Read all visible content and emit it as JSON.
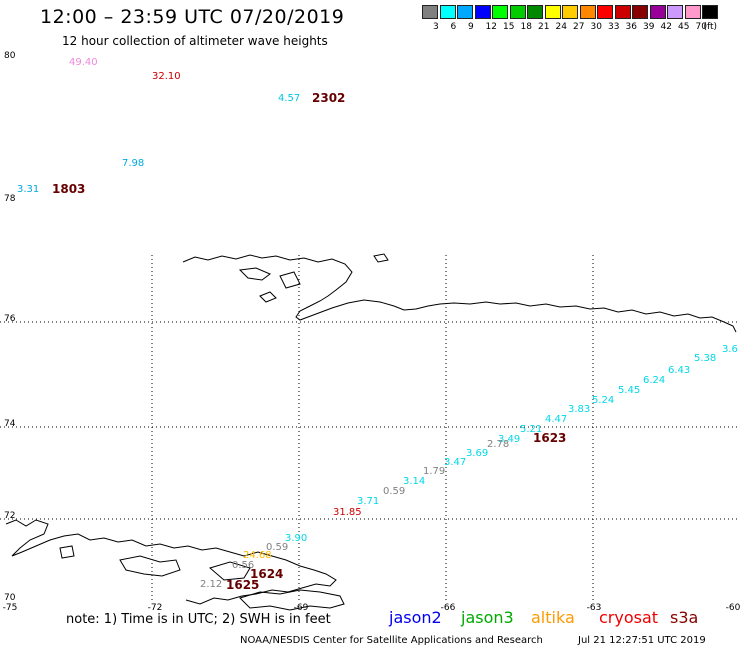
{
  "header": {
    "title": "12:00 – 23:59 UTC 07/20/2019",
    "subtitle": "12 hour collection of altimeter wave heights"
  },
  "legend": {
    "unit": "(ft)",
    "bins": [
      {
        "label": "3",
        "color": "#808080"
      },
      {
        "label": "6",
        "color": "#00ffff"
      },
      {
        "label": "9",
        "color": "#00a8ff"
      },
      {
        "label": "12",
        "color": "#0000ff"
      },
      {
        "label": "15",
        "color": "#00ff00"
      },
      {
        "label": "18",
        "color": "#00cc00"
      },
      {
        "label": "21",
        "color": "#008800"
      },
      {
        "label": "24",
        "color": "#ffff00"
      },
      {
        "label": "27",
        "color": "#ffcc00"
      },
      {
        "label": "30",
        "color": "#ff8800"
      },
      {
        "label": "33",
        "color": "#ff0000"
      },
      {
        "label": "36",
        "color": "#cc0000"
      },
      {
        "label": "39",
        "color": "#880000"
      },
      {
        "label": "42",
        "color": "#990099"
      },
      {
        "label": "45",
        "color": "#cc99ff"
      },
      {
        "label": "70",
        "color": "#ff99cc"
      },
      {
        "label": "",
        "color": "#000000"
      }
    ]
  },
  "map": {
    "lon_range": [
      -75,
      -60
    ],
    "lat_range": [
      70,
      80
    ],
    "lon_ticks": [
      "-75",
      "-72",
      "-69",
      "-66",
      "-63",
      "-60"
    ],
    "lat_ticks": [
      "80",
      "78",
      "76",
      "74",
      "72",
      "70"
    ],
    "grid_lines": "dotted"
  },
  "observations": [
    {
      "text": "49.40",
      "color": "#ee88dd"
    },
    {
      "text": "32.10",
      "color": "#cc0000"
    },
    {
      "text": "4.57",
      "color": "#00c8e0"
    },
    {
      "text": "7.98",
      "color": "#00a8e0"
    },
    {
      "text": "3.31",
      "color": "#00a8e0"
    },
    {
      "text": "3.6",
      "color": "#00d8e8"
    },
    {
      "text": "5.38",
      "color": "#00d8e8"
    },
    {
      "text": "6.43",
      "color": "#00d8e8"
    },
    {
      "text": "6.24",
      "color": "#00d8e8"
    },
    {
      "text": "5.45",
      "color": "#00d8e8"
    },
    {
      "text": "5.24",
      "color": "#00d8e8"
    },
    {
      "text": "3.83",
      "color": "#00d8e8"
    },
    {
      "text": "4.47",
      "color": "#00d8e8"
    },
    {
      "text": "5.21",
      "color": "#00d8e8"
    },
    {
      "text": "3.49",
      "color": "#00d8e8"
    },
    {
      "text": "2.78",
      "color": "#808080"
    },
    {
      "text": "3.69",
      "color": "#00d8e8"
    },
    {
      "text": "3.47",
      "color": "#00d8e8"
    },
    {
      "text": "1.79",
      "color": "#808080"
    },
    {
      "text": "3.14",
      "color": "#00d8e8"
    },
    {
      "text": "0.59",
      "color": "#808080"
    },
    {
      "text": "3.71",
      "color": "#00d8e8"
    },
    {
      "text": "31.85",
      "color": "#cc0000"
    },
    {
      "text": "3.90",
      "color": "#00d8e8"
    },
    {
      "text": "0.59",
      "color": "#808080"
    },
    {
      "text": "24.68",
      "color": "#ffbb00"
    },
    {
      "text": "0.56",
      "color": "#808080"
    },
    {
      "text": "2.12",
      "color": "#808080"
    }
  ],
  "time_labels": [
    {
      "text": "2302",
      "color": "#660000"
    },
    {
      "text": "1803",
      "color": "#660000"
    },
    {
      "text": "1623",
      "color": "#660000"
    },
    {
      "text": "1624",
      "color": "#660000"
    },
    {
      "text": "1625",
      "color": "#660000"
    }
  ],
  "footer": {
    "note": "note:  1) Time is in UTC;  2) SWH is in feet",
    "satellites": [
      {
        "name": "jason2",
        "color": "#0000ee"
      },
      {
        "name": "jason3",
        "color": "#00aa00"
      },
      {
        "name": "altika",
        "color": "#ff9900"
      },
      {
        "name": "cryosat",
        "color": "#ee0000"
      },
      {
        "name": "s3a",
        "color": "#880000"
      }
    ],
    "credit": "NOAA/NESDIS Center for Satellite Applications and Research",
    "generated": "Jul 21 12:27:51 UTC 2019"
  }
}
